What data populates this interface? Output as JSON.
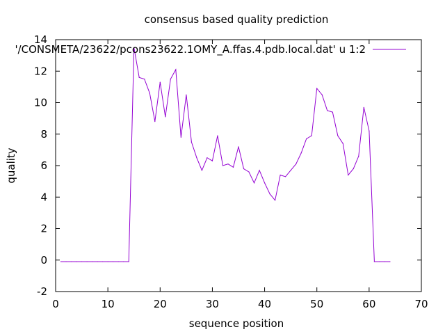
{
  "chart_data": {
    "type": "line",
    "title": "consensus based quality prediction",
    "xlabel": "sequence position",
    "ylabel": "quality",
    "xlim": [
      0,
      70
    ],
    "ylim": [
      -2,
      14
    ],
    "xticks": [
      0,
      10,
      20,
      30,
      40,
      50,
      60,
      70
    ],
    "yticks": [
      -2,
      0,
      2,
      4,
      6,
      8,
      10,
      12,
      14
    ],
    "grid": false,
    "legend_position": "top-right",
    "series": [
      {
        "name": "'/CONSMETA/23622/pcons23622.1OMY_A.ffas.4.pdb.local.dat' u 1:2",
        "color": "#9400d3",
        "x": [
          1,
          2,
          3,
          4,
          5,
          6,
          7,
          8,
          9,
          10,
          11,
          12,
          13,
          14,
          15,
          16,
          17,
          18,
          19,
          20,
          21,
          22,
          23,
          24,
          25,
          26,
          27,
          28,
          29,
          30,
          31,
          32,
          33,
          34,
          35,
          36,
          37,
          38,
          39,
          40,
          41,
          42,
          43,
          44,
          45,
          46,
          47,
          48,
          49,
          50,
          51,
          52,
          53,
          54,
          55,
          56,
          57,
          58,
          59,
          60,
          61,
          62,
          63,
          64
        ],
        "y": [
          -0.1,
          -0.1,
          -0.1,
          -0.1,
          -0.1,
          -0.1,
          -0.1,
          -0.1,
          -0.1,
          -0.1,
          -0.1,
          -0.1,
          -0.1,
          -0.1,
          13.5,
          11.6,
          11.5,
          10.6,
          8.8,
          11.3,
          9.1,
          11.5,
          12.1,
          7.8,
          10.5,
          7.5,
          6.5,
          5.7,
          6.5,
          6.3,
          7.9,
          6.0,
          6.1,
          5.9,
          7.2,
          5.8,
          5.6,
          4.9,
          5.7,
          4.9,
          4.2,
          3.8,
          5.4,
          5.3,
          5.7,
          6.1,
          6.8,
          7.7,
          7.9,
          10.9,
          10.5,
          9.5,
          9.4,
          7.9,
          7.4,
          5.4,
          5.8,
          6.6,
          9.7,
          8.2,
          -0.1,
          -0.1,
          -0.1,
          -0.1
        ]
      }
    ]
  }
}
